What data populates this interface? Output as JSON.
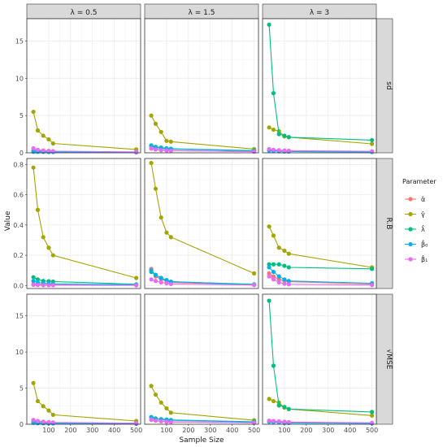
{
  "chart_data": {
    "type": "line",
    "xlabel": "Sample Size",
    "ylabel": "Value",
    "x": [
      30,
      50,
      75,
      100,
      120,
      500
    ],
    "xlim": [
      0,
      520
    ],
    "xticks": [
      100,
      200,
      300,
      400,
      500
    ],
    "columns": [
      "λ = 0.5",
      "λ = 1.5",
      "λ = 3"
    ],
    "row_labels": [
      "sd",
      "R.B",
      "√MSE"
    ],
    "rows": [
      {
        "ylim": [
          0,
          18
        ],
        "yticks": [
          0,
          5,
          10,
          15
        ],
        "ytick_labels": [
          "0",
          "5",
          "10",
          "15"
        ]
      },
      {
        "ylim": [
          -0.02,
          0.84
        ],
        "yticks": [
          0,
          0.2,
          0.4,
          0.6,
          0.8
        ],
        "ytick_labels": [
          "0.0",
          "0.2",
          "0.4",
          "0.6",
          "0.8"
        ]
      },
      {
        "ylim": [
          0,
          18
        ],
        "yticks": [
          0,
          5,
          10,
          15
        ],
        "ytick_labels": [
          "0",
          "5",
          "10",
          "15"
        ]
      }
    ],
    "legend": {
      "title": "Parameter",
      "position": "right",
      "entries": [
        "α̂",
        "γ̂",
        "λ̂",
        "β̂₀",
        "β̂₁"
      ]
    },
    "grid": true,
    "colors": {
      "alpha": "#F8766D",
      "gamma": "#A3A500",
      "lambda": "#00BF7D",
      "beta0": "#00B0F6",
      "beta1": "#E76BF3",
      "strip_bg": "#D9D9D9",
      "panel_border": "#333333",
      "grid_major": "#EBEBEB"
    },
    "panels": [
      [
        {
          "alpha": [
            0.35,
            0.3,
            0.25,
            0.22,
            0.2,
            0.1
          ],
          "gamma": [
            5.5,
            3.0,
            2.3,
            1.8,
            1.25,
            0.45
          ],
          "lambda": [
            0.2,
            0.18,
            0.16,
            0.15,
            0.14,
            0.08
          ],
          "beta0": [
            0.15,
            0.13,
            0.12,
            0.11,
            0.1,
            0.05
          ],
          "beta1": [
            0.6,
            0.4,
            0.3,
            0.26,
            0.22,
            0.12
          ]
        },
        {
          "alpha": [
            0.55,
            0.45,
            0.4,
            0.35,
            0.3,
            0.15
          ],
          "gamma": [
            5.0,
            3.9,
            2.8,
            1.6,
            1.5,
            0.5
          ],
          "lambda": [
            1.0,
            0.8,
            0.7,
            0.6,
            0.55,
            0.3
          ],
          "beta0": [
            0.9,
            0.7,
            0.6,
            0.55,
            0.5,
            0.25
          ],
          "beta1": [
            0.6,
            0.45,
            0.35,
            0.3,
            0.28,
            0.15
          ]
        },
        {
          "alpha": [
            0.4,
            0.35,
            0.3,
            0.25,
            0.22,
            0.15
          ],
          "gamma": [
            3.4,
            3.1,
            2.9,
            2.2,
            2.1,
            1.2
          ],
          "lambda": [
            17.2,
            8.0,
            2.5,
            2.3,
            2.1,
            1.7
          ],
          "beta0": [
            0.3,
            0.25,
            0.2,
            0.18,
            0.16,
            0.1
          ],
          "beta1": [
            0.5,
            0.4,
            0.35,
            0.3,
            0.28,
            0.2
          ]
        }
      ],
      [
        {
          "alpha": [
            0.01,
            0.008,
            0.006,
            0.005,
            0.004,
            0.002
          ],
          "gamma": [
            0.78,
            0.5,
            0.32,
            0.25,
            0.2,
            0.05
          ],
          "lambda": [
            0.055,
            0.04,
            0.03,
            0.028,
            0.026,
            0.008
          ],
          "beta0": [
            0.03,
            0.02,
            0.015,
            0.012,
            0.01,
            0.005
          ],
          "beta1": [
            0.004,
            0.003,
            0.002,
            0.002,
            0.002,
            0.001
          ]
        },
        {
          "alpha": [
            0.11,
            0.06,
            0.04,
            0.03,
            0.02,
            0.005
          ],
          "gamma": [
            0.81,
            0.64,
            0.45,
            0.35,
            0.32,
            0.08
          ],
          "lambda": [
            0.09,
            0.07,
            0.05,
            0.035,
            0.025,
            0.008
          ],
          "beta0": [
            0.1,
            0.07,
            0.05,
            0.035,
            0.025,
            0.005
          ],
          "beta1": [
            0.04,
            0.03,
            0.02,
            0.015,
            0.01,
            0.003
          ]
        },
        {
          "alpha": [
            0.08,
            0.06,
            0.04,
            0.03,
            0.025,
            0.01
          ],
          "gamma": [
            0.39,
            0.33,
            0.25,
            0.23,
            0.21,
            0.12
          ],
          "lambda": [
            0.14,
            0.14,
            0.14,
            0.13,
            0.12,
            0.11
          ],
          "beta0": [
            0.12,
            0.09,
            0.06,
            0.04,
            0.03,
            0.015
          ],
          "beta1": [
            0.06,
            0.04,
            0.02,
            0.012,
            0.008,
            0.003
          ]
        }
      ],
      [
        {
          "alpha": [
            0.4,
            0.35,
            0.3,
            0.25,
            0.22,
            0.12
          ],
          "gamma": [
            5.7,
            3.2,
            2.5,
            1.9,
            1.3,
            0.45
          ],
          "lambda": [
            0.25,
            0.2,
            0.18,
            0.16,
            0.15,
            0.08
          ],
          "beta0": [
            0.2,
            0.15,
            0.14,
            0.12,
            0.11,
            0.06
          ],
          "beta1": [
            0.6,
            0.45,
            0.35,
            0.3,
            0.25,
            0.15
          ]
        },
        {
          "alpha": [
            0.6,
            0.5,
            0.45,
            0.4,
            0.35,
            0.2
          ],
          "gamma": [
            5.3,
            4.1,
            3.0,
            2.2,
            1.6,
            0.55
          ],
          "lambda": [
            1.0,
            0.8,
            0.7,
            0.65,
            0.6,
            0.35
          ],
          "beta0": [
            0.95,
            0.75,
            0.65,
            0.6,
            0.55,
            0.3
          ],
          "beta1": [
            0.65,
            0.5,
            0.4,
            0.35,
            0.3,
            0.2
          ]
        },
        {
          "alpha": [
            0.45,
            0.4,
            0.35,
            0.3,
            0.25,
            0.15
          ],
          "gamma": [
            3.5,
            3.2,
            3.0,
            2.3,
            2.1,
            1.2
          ],
          "lambda": [
            17.1,
            8.1,
            2.6,
            2.4,
            2.1,
            1.7
          ],
          "beta0": [
            0.35,
            0.3,
            0.25,
            0.2,
            0.18,
            0.12
          ],
          "beta1": [
            0.5,
            0.45,
            0.4,
            0.35,
            0.3,
            0.2
          ]
        }
      ]
    ]
  }
}
